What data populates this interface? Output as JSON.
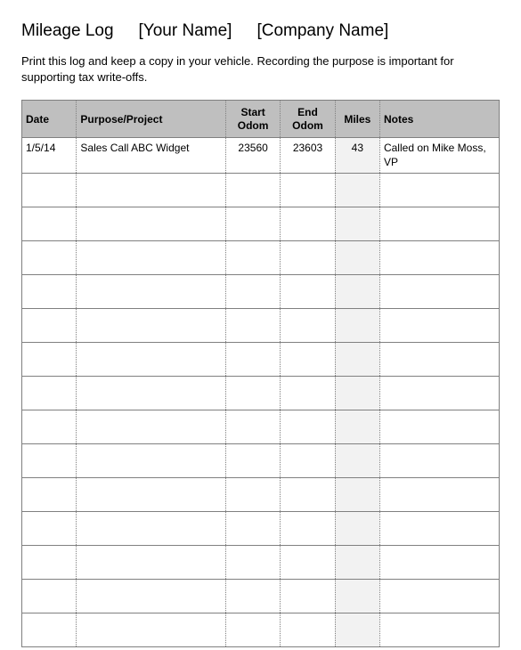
{
  "title": {
    "label": "Mileage Log",
    "name_placeholder": "[Your Name]",
    "company_placeholder": "[Company Name]"
  },
  "instructions": "Print this log and keep a copy in your vehicle. Recording the purpose is important for supporting tax write-offs.",
  "table": {
    "columns": [
      {
        "label": "Date",
        "class": "col-date"
      },
      {
        "label": "Purpose/Project",
        "class": "col-purpose"
      },
      {
        "label": "Start Odom",
        "class": "col-start"
      },
      {
        "label": "End Odom",
        "class": "col-end"
      },
      {
        "label": "Miles",
        "class": "col-miles"
      },
      {
        "label": "Notes",
        "class": "col-notes"
      }
    ],
    "rows": [
      {
        "date": "1/5/14",
        "purpose": "Sales Call ABC Widget",
        "start": "23560",
        "end": "23603",
        "miles": "43",
        "notes": "Called on Mike Moss, VP"
      },
      {
        "date": "",
        "purpose": "",
        "start": "",
        "end": "",
        "miles": "",
        "notes": ""
      },
      {
        "date": "",
        "purpose": "",
        "start": "",
        "end": "",
        "miles": "",
        "notes": ""
      },
      {
        "date": "",
        "purpose": "",
        "start": "",
        "end": "",
        "miles": "",
        "notes": ""
      },
      {
        "date": "",
        "purpose": "",
        "start": "",
        "end": "",
        "miles": "",
        "notes": ""
      },
      {
        "date": "",
        "purpose": "",
        "start": "",
        "end": "",
        "miles": "",
        "notes": ""
      },
      {
        "date": "",
        "purpose": "",
        "start": "",
        "end": "",
        "miles": "",
        "notes": ""
      },
      {
        "date": "",
        "purpose": "",
        "start": "",
        "end": "",
        "miles": "",
        "notes": ""
      },
      {
        "date": "",
        "purpose": "",
        "start": "",
        "end": "",
        "miles": "",
        "notes": ""
      },
      {
        "date": "",
        "purpose": "",
        "start": "",
        "end": "",
        "miles": "",
        "notes": ""
      },
      {
        "date": "",
        "purpose": "",
        "start": "",
        "end": "",
        "miles": "",
        "notes": ""
      },
      {
        "date": "",
        "purpose": "",
        "start": "",
        "end": "",
        "miles": "",
        "notes": ""
      },
      {
        "date": "",
        "purpose": "",
        "start": "",
        "end": "",
        "miles": "",
        "notes": ""
      },
      {
        "date": "",
        "purpose": "",
        "start": "",
        "end": "",
        "miles": "",
        "notes": ""
      },
      {
        "date": "",
        "purpose": "",
        "start": "",
        "end": "",
        "miles": "",
        "notes": ""
      }
    ]
  },
  "styling": {
    "header_bg": "#bfbfbf",
    "miles_col_bg": "#f2f2f2",
    "border_color": "#808080",
    "font_family": "Arial",
    "title_fontsize": 19,
    "body_fontsize": 13,
    "table_fontsize": 12
  }
}
